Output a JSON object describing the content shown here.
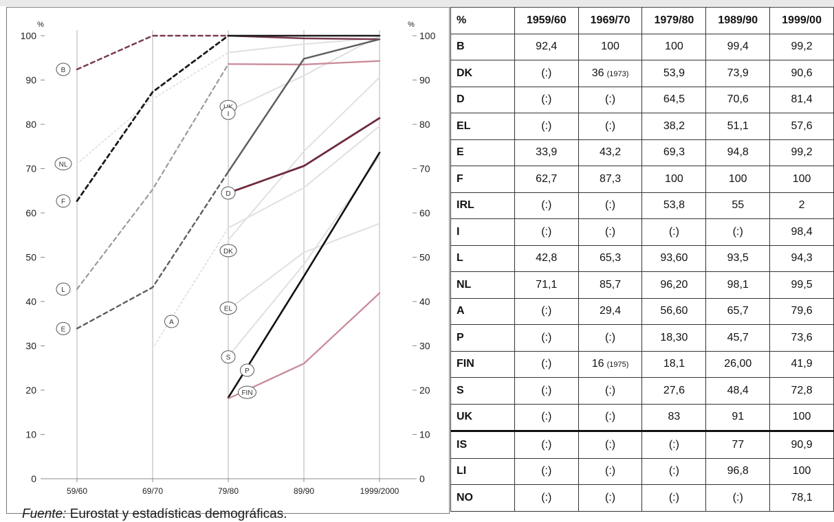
{
  "chart_data": {
    "type": "line",
    "y_unit_left": "%",
    "y_unit_right": "%",
    "ylim": [
      0,
      100
    ],
    "y_ticks": [
      "0",
      "10",
      "20",
      "30",
      "40",
      "50",
      "60",
      "70",
      "80",
      "90",
      "100"
    ],
    "x_ticks": [
      "59/60",
      "69/70",
      "79/80",
      "89/90",
      "1999/2000"
    ],
    "grid": "vertical",
    "series": [
      {
        "name": "B",
        "color": "#7a3a4c",
        "style": "dashed",
        "width": 2.5,
        "values": [
          92.4,
          100,
          100,
          null,
          null
        ]
      },
      {
        "name": "F",
        "color": "#1a1a1a",
        "style": "dashed",
        "width": 2.8,
        "values": [
          62.7,
          87.3,
          100,
          null,
          null
        ]
      },
      {
        "name": "L",
        "color": "#9a9a9a",
        "style": "dashed",
        "width": 2.2,
        "values": [
          42.8,
          65.3,
          93.6,
          null,
          null
        ]
      },
      {
        "name": "E",
        "color": "#5e5e5e",
        "style": "dashed",
        "width": 2.4,
        "values": [
          33.9,
          43.2,
          69.3,
          null,
          null
        ]
      },
      {
        "name": "NL",
        "color": "#e2e2e2",
        "style": "dotted",
        "width": 2.0,
        "values": [
          71.1,
          85.7,
          96.2,
          null,
          null
        ]
      },
      {
        "name": "A",
        "color": "#e2e2e2",
        "style": "dotted",
        "width": 2.0,
        "values": [
          null,
          29.4,
          56.6,
          null,
          null
        ]
      },
      {
        "name": "B-solid",
        "color": "#7a3a4c",
        "style": "solid",
        "width": 2.5,
        "values": [
          null,
          null,
          100,
          99.4,
          99.2
        ]
      },
      {
        "name": "F-solid",
        "color": "#1a1a1a",
        "style": "solid",
        "width": 2.5,
        "values": [
          null,
          null,
          100,
          100,
          100
        ]
      },
      {
        "name": "L-solid",
        "color": "#c98a98",
        "style": "solid",
        "width": 2.3,
        "values": [
          null,
          null,
          93.6,
          93.5,
          94.3
        ]
      },
      {
        "name": "E-solid",
        "color": "#5e5e5e",
        "style": "solid",
        "width": 2.5,
        "values": [
          null,
          null,
          69.3,
          94.8,
          99.2
        ]
      },
      {
        "name": "NL-solid",
        "color": "#e0e0e0",
        "style": "solid",
        "width": 2.0,
        "values": [
          null,
          null,
          96.2,
          98.1,
          99.5
        ]
      },
      {
        "name": "A-solid",
        "color": "#e0e0e0",
        "style": "solid",
        "width": 2.0,
        "values": [
          null,
          null,
          56.6,
          65.7,
          79.6
        ]
      },
      {
        "name": "UK",
        "color": "#e0e0e0",
        "style": "solid",
        "width": 2.0,
        "values": [
          null,
          null,
          83,
          91,
          100
        ]
      },
      {
        "name": "DK",
        "color": "#e0e0e0",
        "style": "solid",
        "width": 2.0,
        "values": [
          null,
          null,
          53.9,
          73.9,
          90.6
        ]
      },
      {
        "name": "EL",
        "color": "#e0e0e0",
        "style": "solid",
        "width": 2.0,
        "values": [
          null,
          null,
          38.2,
          51.1,
          57.6
        ]
      },
      {
        "name": "S",
        "color": "#e0e0e0",
        "style": "solid",
        "width": 2.0,
        "values": [
          null,
          null,
          27.6,
          48.4,
          72.8
        ]
      },
      {
        "name": "D",
        "color": "#6e2a3c",
        "style": "solid",
        "width": 2.8,
        "values": [
          null,
          null,
          64.5,
          70.6,
          81.4
        ]
      },
      {
        "name": "P",
        "color": "#111111",
        "style": "solid",
        "width": 2.6,
        "values": [
          null,
          null,
          18.3,
          45.7,
          73.6
        ]
      },
      {
        "name": "FIN",
        "color": "#c98a98",
        "style": "solid",
        "width": 2.3,
        "values": [
          null,
          null,
          18.1,
          26.0,
          41.9
        ]
      }
    ],
    "point_labels": [
      {
        "text": "B",
        "x": 0,
        "y": 92.4
      },
      {
        "text": "NL",
        "x": 0,
        "y": 71.1
      },
      {
        "text": "F",
        "x": 0,
        "y": 62.7
      },
      {
        "text": "L",
        "x": 0,
        "y": 42.8
      },
      {
        "text": "E",
        "x": 0,
        "y": 33.9
      },
      {
        "text": "A",
        "x": 1.25,
        "y": 35.5
      },
      {
        "text": "UK",
        "x": 2,
        "y": 84
      },
      {
        "text": "I",
        "x": 2,
        "y": 82.5
      },
      {
        "text": "D",
        "x": 2,
        "y": 64.5
      },
      {
        "text": "DK",
        "x": 2,
        "y": 51.5
      },
      {
        "text": "EL",
        "x": 2,
        "y": 38.5
      },
      {
        "text": "S",
        "x": 2,
        "y": 27.5
      },
      {
        "text": "P",
        "x": 2.25,
        "y": 24.5
      },
      {
        "text": "FIN",
        "x": 2.25,
        "y": 19.5
      }
    ]
  },
  "source": {
    "label": "Fuente:",
    "text": " Eurostat y estadísticas demográficas."
  },
  "table": {
    "header": [
      "%",
      "1959/60",
      "1969/70",
      "1979/80",
      "1989/90",
      "1999/00"
    ],
    "rows": [
      {
        "country": "B",
        "values": [
          "92,4",
          "100",
          "100",
          "99,4",
          "99,2"
        ]
      },
      {
        "country": "DK",
        "values": [
          "(:)",
          "36",
          "53,9",
          "73,9",
          "90,6"
        ],
        "notes": [
          null,
          "(1973)",
          null,
          null,
          null
        ]
      },
      {
        "country": "D",
        "values": [
          "(:)",
          "(:)",
          "64,5",
          "70,6",
          "81,4"
        ]
      },
      {
        "country": "EL",
        "values": [
          "(:)",
          "(:)",
          "38,2",
          "51,1",
          "57,6"
        ]
      },
      {
        "country": "E",
        "values": [
          "33,9",
          "43,2",
          "69,3",
          "94,8",
          "99,2"
        ]
      },
      {
        "country": "F",
        "values": [
          "62,7",
          "87,3",
          "100",
          "100",
          "100"
        ]
      },
      {
        "country": "IRL",
        "values": [
          "(:)",
          "(:)",
          "53,8",
          "55",
          "2"
        ]
      },
      {
        "country": "I",
        "values": [
          "(:)",
          "(:)",
          "(:)",
          "(:)",
          "98,4"
        ]
      },
      {
        "country": "L",
        "values": [
          "42,8",
          "65,3",
          "93,60",
          "93,5",
          "94,3"
        ]
      },
      {
        "country": "NL",
        "values": [
          "71,1",
          "85,7",
          "96,20",
          "98,1",
          "99,5"
        ]
      },
      {
        "country": "A",
        "values": [
          "(:)",
          "29,4",
          "56,60",
          "65,7",
          "79,6"
        ]
      },
      {
        "country": "P",
        "values": [
          "(:)",
          "(:)",
          "18,30",
          "45,7",
          "73,6"
        ]
      },
      {
        "country": "FIN",
        "values": [
          "(:)",
          "16",
          "18,1",
          "26,00",
          "41,9"
        ],
        "notes": [
          null,
          "(1975)",
          null,
          null,
          null
        ]
      },
      {
        "country": "S",
        "values": [
          "(:)",
          "(:)",
          "27,6",
          "48,4",
          "72,8"
        ]
      },
      {
        "country": "UK",
        "values": [
          "(:)",
          "(:)",
          "83",
          "91",
          "100"
        ]
      },
      {
        "country": "IS",
        "values": [
          "(:)",
          "(:)",
          "(:)",
          "77",
          "90,9"
        ],
        "separator": true
      },
      {
        "country": "LI",
        "values": [
          "(:)",
          "(:)",
          "(:)",
          "96,8",
          "100"
        ]
      },
      {
        "country": "NO",
        "values": [
          "(:)",
          "(:)",
          "(:)",
          "(:)",
          "78,1"
        ]
      }
    ]
  }
}
